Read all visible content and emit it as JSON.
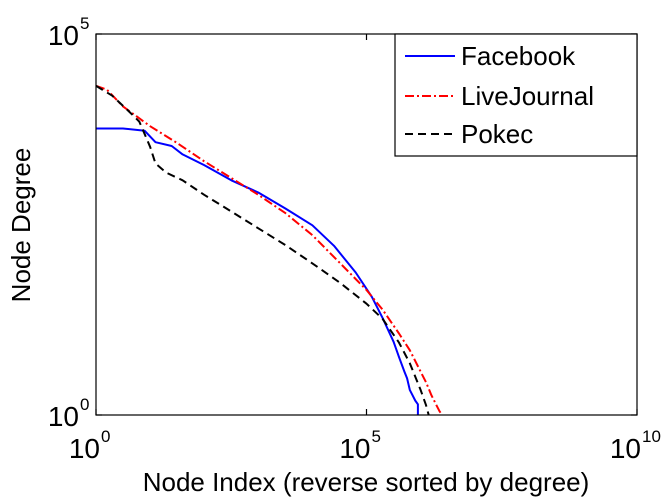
{
  "chart_data": {
    "type": "line",
    "title": "",
    "xlabel": "Node Index (reverse sorted by degree)",
    "ylabel": "Node Degree",
    "xscale": "log",
    "yscale": "log",
    "xlim_exp": [
      0,
      10
    ],
    "ylim_exp": [
      0,
      5
    ],
    "x_ticks": [
      {
        "base": "10",
        "exp": "0",
        "value": 0
      },
      {
        "base": "10",
        "exp": "5",
        "value": 5
      },
      {
        "base": "10",
        "exp": "10",
        "value": 10
      }
    ],
    "y_ticks": [
      {
        "base": "10",
        "exp": "0",
        "value": 0
      },
      {
        "base": "10",
        "exp": "5",
        "value": 5
      }
    ],
    "legend_position": "top-right",
    "series": [
      {
        "name": "Facebook",
        "color": "#0000ff",
        "dash": "solid",
        "log10_x": [
          0,
          0.5,
          0.9,
          1.1,
          1.4,
          1.6,
          2.0,
          2.5,
          3.0,
          3.5,
          4.0,
          4.4,
          4.8,
          5.1,
          5.3,
          5.5,
          5.6,
          5.7,
          5.75,
          5.8,
          5.85,
          5.9,
          5.95,
          5.95
        ],
        "log10_y": [
          3.76,
          3.76,
          3.73,
          3.58,
          3.53,
          3.42,
          3.28,
          3.08,
          2.92,
          2.71,
          2.49,
          2.22,
          1.87,
          1.55,
          1.27,
          0.96,
          0.76,
          0.57,
          0.48,
          0.33,
          0.26,
          0.19,
          0.14,
          0.0
        ]
      },
      {
        "name": "LiveJournal",
        "color": "#ff0000",
        "dash": "dashdot",
        "log10_x": [
          0,
          0.2,
          0.5,
          1.0,
          1.5,
          2.0,
          2.5,
          3.0,
          3.5,
          4.0,
          4.5,
          5.0,
          5.3,
          5.6,
          5.8,
          6.0,
          6.1,
          6.2,
          6.3,
          6.35,
          6.4
        ],
        "log10_y": [
          4.32,
          4.27,
          4.05,
          3.79,
          3.57,
          3.33,
          3.11,
          2.89,
          2.65,
          2.36,
          2.0,
          1.64,
          1.38,
          1.07,
          0.85,
          0.57,
          0.43,
          0.26,
          0.12,
          0.05,
          0.0
        ]
      },
      {
        "name": "Pokec",
        "color": "#000000",
        "dash": "dashed",
        "log10_x": [
          0,
          0.3,
          0.6,
          0.8,
          1.0,
          1.1,
          1.3,
          1.6,
          2.0,
          2.5,
          3.0,
          3.5,
          4.0,
          4.5,
          5.0,
          5.3,
          5.6,
          5.8,
          6.0,
          6.1,
          6.15
        ],
        "log10_y": [
          4.32,
          4.19,
          3.99,
          3.85,
          3.52,
          3.3,
          3.18,
          3.08,
          2.89,
          2.67,
          2.45,
          2.23,
          1.99,
          1.74,
          1.46,
          1.26,
          0.95,
          0.68,
          0.33,
          0.13,
          0.0
        ]
      }
    ]
  }
}
